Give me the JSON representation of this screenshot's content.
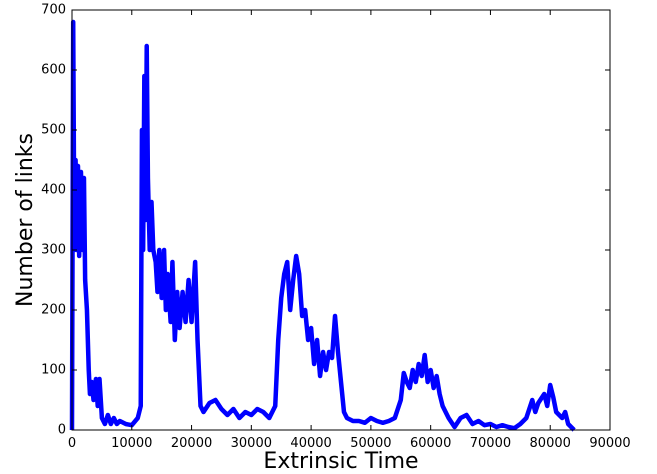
{
  "chart_data": {
    "type": "line",
    "x_label": "Extrinsic Time",
    "y_label": "Number of links",
    "x": [
      0,
      200,
      400,
      600,
      800,
      1000,
      1200,
      1500,
      1800,
      2000,
      2200,
      2500,
      2800,
      3000,
      3300,
      3600,
      4000,
      4300,
      4600,
      5000,
      5500,
      6000,
      6500,
      7000,
      7500,
      8000,
      9000,
      10000,
      11000,
      11500,
      11700,
      11900,
      12100,
      12300,
      12500,
      12700,
      13000,
      13300,
      13600,
      14000,
      14300,
      14600,
      15000,
      15400,
      15700,
      16000,
      16500,
      16800,
      17200,
      17600,
      18000,
      18500,
      19000,
      19500,
      20000,
      20600,
      21000,
      21500,
      22000,
      23000,
      24000,
      25000,
      26000,
      27000,
      28000,
      29000,
      30000,
      31000,
      32000,
      33000,
      34000,
      34500,
      35000,
      35500,
      36000,
      36500,
      37000,
      37500,
      38000,
      38500,
      39000,
      39500,
      40000,
      40500,
      41000,
      41500,
      42000,
      42500,
      43000,
      43500,
      44000,
      44500,
      45000,
      45500,
      46000,
      47000,
      48000,
      49000,
      50000,
      51000,
      52000,
      53000,
      54000,
      55000,
      55500,
      56000,
      56500,
      57000,
      57500,
      58000,
      58500,
      59000,
      59500,
      60000,
      60500,
      61000,
      61500,
      62000,
      63000,
      64000,
      65000,
      66000,
      67000,
      68000,
      69000,
      70000,
      71000,
      72000,
      73000,
      74000,
      75000,
      76000,
      77000,
      77500,
      78000,
      79000,
      79500,
      80000,
      80500,
      81000,
      82000,
      82500,
      83000,
      84000
    ],
    "series": [
      {
        "name": "links",
        "color": "#0000ff",
        "values": [
          0,
          680,
          300,
          450,
          300,
          440,
          290,
          430,
          300,
          420,
          250,
          200,
          100,
          60,
          80,
          50,
          85,
          40,
          85,
          20,
          10,
          25,
          10,
          20,
          10,
          15,
          10,
          8,
          20,
          40,
          500,
          300,
          590,
          350,
          640,
          420,
          300,
          380,
          300,
          280,
          230,
          300,
          220,
          300,
          200,
          260,
          180,
          280,
          150,
          230,
          170,
          230,
          180,
          250,
          180,
          280,
          150,
          40,
          30,
          45,
          50,
          35,
          25,
          35,
          20,
          30,
          25,
          35,
          30,
          20,
          40,
          150,
          220,
          260,
          280,
          200,
          250,
          290,
          260,
          190,
          200,
          150,
          170,
          110,
          150,
          90,
          130,
          100,
          130,
          120,
          190,
          130,
          80,
          30,
          20,
          15,
          15,
          12,
          20,
          15,
          12,
          15,
          20,
          50,
          95,
          80,
          70,
          100,
          80,
          110,
          90,
          125,
          80,
          100,
          70,
          90,
          60,
          40,
          20,
          5,
          20,
          25,
          10,
          15,
          8,
          10,
          5,
          8,
          5,
          3,
          10,
          20,
          50,
          30,
          45,
          60,
          40,
          75,
          55,
          30,
          20,
          30,
          10,
          0
        ]
      }
    ],
    "xlim": [
      0,
      90000
    ],
    "ylim": [
      0,
      700
    ],
    "xticks": [
      0,
      10000,
      20000,
      30000,
      40000,
      50000,
      60000,
      70000,
      80000,
      90000
    ],
    "yticks": [
      0,
      100,
      200,
      300,
      400,
      500,
      600,
      700
    ]
  }
}
